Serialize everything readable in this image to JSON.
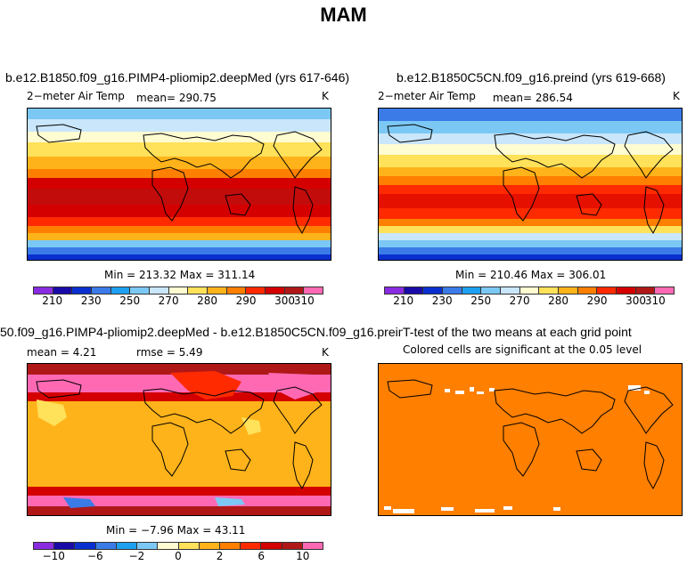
{
  "figure_title": "MAM",
  "panels": {
    "top_left": {
      "title": "b.e12.B1850.f09_g16.PIMP4-pliomip2.deepMed (yrs 617-646)",
      "field": "2−meter Air Temp",
      "mean": "mean= 290.75",
      "units": "K",
      "minmax": "Min = 213.32 Max = 311.14"
    },
    "top_right": {
      "title": "b.e12.B1850C5CN.f09_g16.preind (yrs 619-668)",
      "field": "2−meter Air Temp",
      "mean": "mean= 286.54",
      "units": "K",
      "minmax": "Min = 210.46 Max = 306.01"
    },
    "bottom_left": {
      "title": "50.f09_g16.PIMP4-pliomip2.deepMed - b.e12.B1850C5CN.f09_g16.preind",
      "mean": "mean =   4.21",
      "rmse": "rmse =   5.49",
      "units": "K",
      "minmax": "Min =  −7.96 Max =   43.11"
    },
    "bottom_right": {
      "title": "T-test of the two means at each grid point",
      "subtitle": "Colored cells are significant at the 0.05 level"
    }
  },
  "colorbars": {
    "absolute": {
      "colors": [
        "#8a2be2",
        "#1a0aa8",
        "#0a2fd0",
        "#3a7be8",
        "#1ea0f0",
        "#7cc8f5",
        "#c9e6fb",
        "#fffcd2",
        "#ffe15a",
        "#ffb31a",
        "#ff7f00",
        "#ff2a00",
        "#d40000",
        "#b01818",
        "#ff69b4"
      ],
      "labels": [
        "210",
        "230",
        "250",
        "270",
        "280",
        "290",
        "300",
        "310"
      ]
    },
    "difference": {
      "colors": [
        "#8a2be2",
        "#1a0aa8",
        "#0a2fd0",
        "#3a7be8",
        "#1ea0f0",
        "#7cc8f5",
        "#fffcd2",
        "#ffe15a",
        "#ffb31a",
        "#ff7f00",
        "#ff2a00",
        "#d40000",
        "#b01818",
        "#ff69b4"
      ],
      "labels": [
        "−10",
        "−6",
        "−2",
        "0",
        "2",
        "6",
        "10"
      ]
    }
  }
}
